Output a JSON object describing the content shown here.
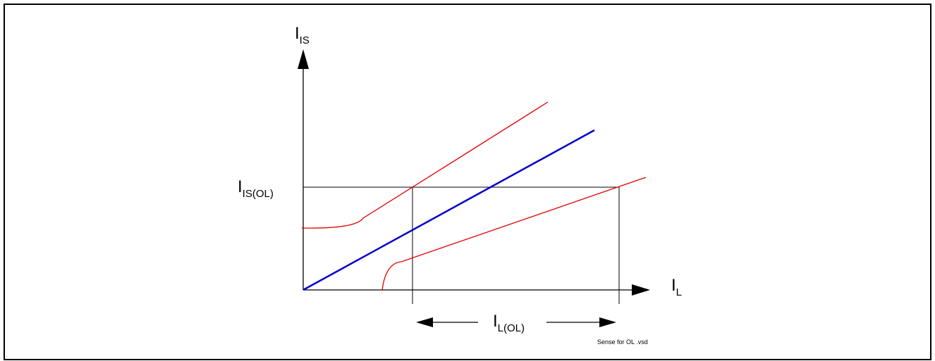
{
  "labels": {
    "y_axis": {
      "main": "I",
      "sub": "IS"
    },
    "x_axis": {
      "main": "I",
      "sub": "L"
    },
    "threshold_current": {
      "main": "I",
      "sub": "IS(OL)"
    },
    "open_load_range": {
      "main": "I",
      "sub": "L(OL)"
    }
  },
  "file_note": "Sense for OL .vsd",
  "colors": {
    "axes": "#000000",
    "nominal_line": "#0000cc",
    "tolerance_lines": "#e00000",
    "reference_lines": "#000000"
  }
}
